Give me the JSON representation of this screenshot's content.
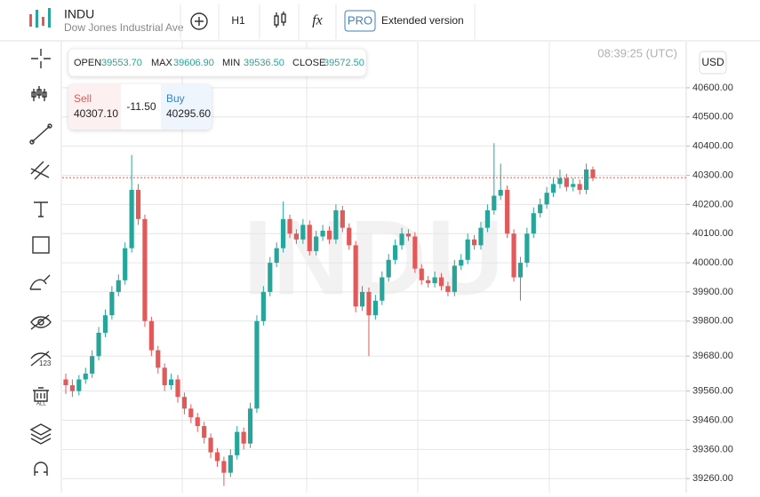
{
  "header": {
    "symbol": "INDU",
    "description": "Dow Jones Industrial Ave",
    "timeframe": "H1",
    "function": "fx",
    "badge": "PRO",
    "extended": "Extended version"
  },
  "ohlc": {
    "open_label": "OPEN",
    "open": "39553.70",
    "max_label": "MAX",
    "max": "39606.90",
    "min_label": "MIN",
    "min": "39536.50",
    "close_label": "CLOSE",
    "close": "39572.50"
  },
  "trade": {
    "sell_label": "Sell",
    "sell": "40307.10",
    "spread": "-11.50",
    "buy_label": "Buy",
    "buy": "40295.60"
  },
  "clock": "08:39:25 (UTC)",
  "currency": "USD",
  "watermark": "INDU",
  "chart_data": {
    "type": "candlestick",
    "up_color": "#26a69a",
    "down_color": "#e05a5a",
    "grid": true,
    "price_line": 40292,
    "ylim": [
      39212,
      40758
    ],
    "yticks": [
      {
        "value": 40600,
        "label": "40600.00"
      },
      {
        "value": 40500,
        "label": "40500.00"
      },
      {
        "value": 40400,
        "label": "40400.00"
      },
      {
        "value": 40300,
        "label": "40300.00"
      },
      {
        "value": 40200,
        "label": "40200.00"
      },
      {
        "value": 40100,
        "label": "40100.00"
      },
      {
        "value": 40000,
        "label": "40000.00"
      },
      {
        "value": 39900,
        "label": "39900.00"
      },
      {
        "value": 39800,
        "label": "39800.00"
      },
      {
        "value": 39680,
        "label": "39680.00"
      },
      {
        "value": 39560,
        "label": "39560.00"
      },
      {
        "value": 39460,
        "label": "39460.00"
      },
      {
        "value": 39360,
        "label": "39360.00"
      },
      {
        "value": 39260,
        "label": "39260.00"
      }
    ],
    "candles": [
      [
        39600,
        39620,
        39550,
        39580
      ],
      [
        39580,
        39600,
        39540,
        39560
      ],
      [
        39560,
        39615,
        39545,
        39600
      ],
      [
        39600,
        39640,
        39585,
        39620
      ],
      [
        39620,
        39700,
        39605,
        39680
      ],
      [
        39680,
        39780,
        39665,
        39760
      ],
      [
        39760,
        39840,
        39745,
        39820
      ],
      [
        39820,
        39920,
        39805,
        39900
      ],
      [
        39900,
        39960,
        39885,
        39940
      ],
      [
        39940,
        40070,
        39925,
        40050
      ],
      [
        40050,
        40370,
        40035,
        40250
      ],
      [
        40250,
        40270,
        40130,
        40150
      ],
      [
        40150,
        40165,
        39780,
        39800
      ],
      [
        39800,
        39815,
        39680,
        39700
      ],
      [
        39700,
        39715,
        39620,
        39640
      ],
      [
        39640,
        39655,
        39560,
        39580
      ],
      [
        39580,
        39620,
        39565,
        39600
      ],
      [
        39600,
        39615,
        39520,
        39540
      ],
      [
        39540,
        39555,
        39480,
        39500
      ],
      [
        39500,
        39515,
        39450,
        39470
      ],
      [
        39470,
        39485,
        39420,
        39440
      ],
      [
        39440,
        39455,
        39380,
        39400
      ],
      [
        39400,
        39415,
        39330,
        39350
      ],
      [
        39350,
        39365,
        39300,
        39320
      ],
      [
        39320,
        39335,
        39235,
        39280
      ],
      [
        39280,
        39360,
        39265,
        39340
      ],
      [
        39340,
        39440,
        39325,
        39420
      ],
      [
        39420,
        39435,
        39360,
        39380
      ],
      [
        39380,
        39520,
        39365,
        39500
      ],
      [
        39500,
        39820,
        39485,
        39800
      ],
      [
        39800,
        39920,
        39785,
        39900
      ],
      [
        39900,
        40020,
        39885,
        40000
      ],
      [
        40000,
        40070,
        39985,
        40050
      ],
      [
        40050,
        40210,
        40035,
        40150
      ],
      [
        40150,
        40165,
        40085,
        40100
      ],
      [
        40100,
        40115,
        40065,
        40080
      ],
      [
        40080,
        40150,
        40065,
        40130
      ],
      [
        40130,
        40145,
        40025,
        40040
      ],
      [
        40040,
        40110,
        40025,
        40090
      ],
      [
        40090,
        40130,
        40075,
        40110
      ],
      [
        40110,
        40125,
        40065,
        40080
      ],
      [
        40080,
        40200,
        40065,
        40180
      ],
      [
        40180,
        40195,
        40105,
        40120
      ],
      [
        40120,
        40135,
        40045,
        40060
      ],
      [
        40060,
        40075,
        39830,
        39850
      ],
      [
        39850,
        39920,
        39835,
        39900
      ],
      [
        39900,
        39915,
        39680,
        39820
      ],
      [
        39820,
        39890,
        39805,
        39870
      ],
      [
        39870,
        39970,
        39855,
        39950
      ],
      [
        39950,
        40030,
        39935,
        40010
      ],
      [
        40010,
        40080,
        39995,
        40060
      ],
      [
        40060,
        40120,
        40045,
        40100
      ],
      [
        40100,
        40115,
        40075,
        40090
      ],
      [
        40090,
        40105,
        39965,
        39980
      ],
      [
        39980,
        39995,
        39925,
        39940
      ],
      [
        39940,
        39955,
        39915,
        39930
      ],
      [
        39930,
        39970,
        39915,
        39950
      ],
      [
        39950,
        39965,
        39905,
        39920
      ],
      [
        39920,
        39935,
        39885,
        39900
      ],
      [
        39900,
        40010,
        39885,
        39990
      ],
      [
        39990,
        40030,
        39975,
        40010
      ],
      [
        40010,
        40100,
        39995,
        40080
      ],
      [
        40080,
        40095,
        40045,
        40060
      ],
      [
        40060,
        40140,
        40045,
        40120
      ],
      [
        40120,
        40200,
        40105,
        40180
      ],
      [
        40180,
        40410,
        40165,
        40230
      ],
      [
        40230,
        40340,
        40215,
        40250
      ],
      [
        40250,
        40265,
        40085,
        40100
      ],
      [
        40100,
        40115,
        39935,
        39950
      ],
      [
        39950,
        40020,
        39870,
        40000
      ],
      [
        40000,
        40120,
        39985,
        40100
      ],
      [
        40100,
        40190,
        40085,
        40170
      ],
      [
        40170,
        40220,
        40155,
        40200
      ],
      [
        40200,
        40260,
        40185,
        40240
      ],
      [
        40240,
        40290,
        40225,
        40270
      ],
      [
        40270,
        40320,
        40255,
        40290
      ],
      [
        40290,
        40305,
        40245,
        40260
      ],
      [
        40260,
        40290,
        40245,
        40270
      ],
      [
        40270,
        40285,
        40235,
        40250
      ],
      [
        40250,
        40340,
        40235,
        40320
      ],
      [
        40320,
        40330,
        40280,
        40290
      ]
    ]
  }
}
